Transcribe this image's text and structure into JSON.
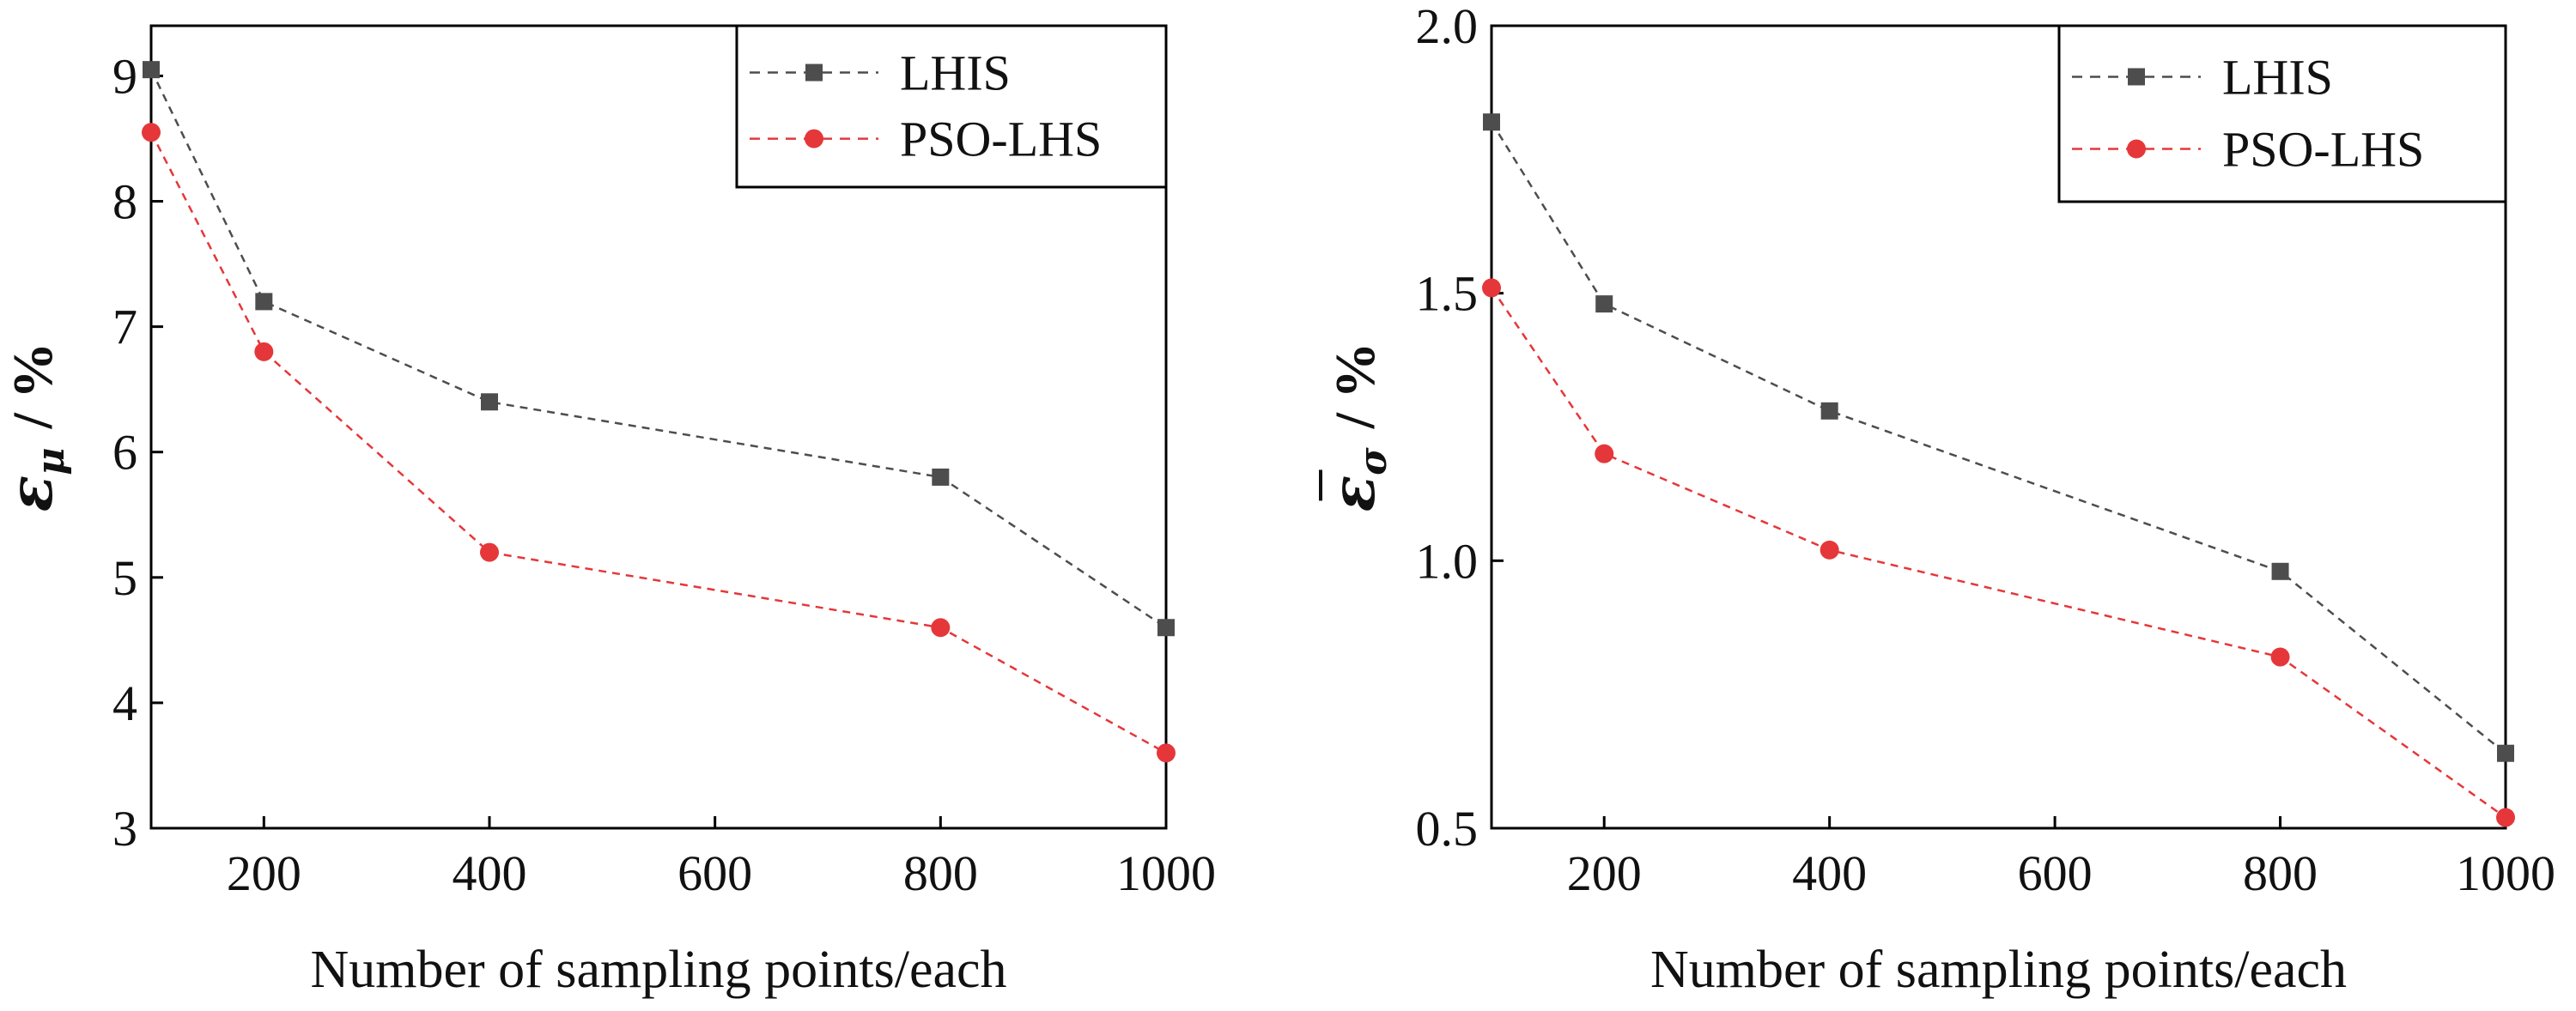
{
  "chart_data": [
    {
      "type": "line",
      "title": "",
      "xlabel": "Number of sampling points/each",
      "ylabel": {
        "symbol": "ε",
        "subscript": "μ",
        "unit": "/ %"
      },
      "x": [
        100,
        200,
        400,
        800,
        1000
      ],
      "xlim": [
        100,
        1000
      ],
      "ylim": [
        3,
        9.4
      ],
      "xticks": [
        200,
        400,
        600,
        800,
        1000
      ],
      "yticks": [
        3,
        4,
        5,
        6,
        7,
        8,
        9
      ],
      "grid": false,
      "legend_position": "top-right",
      "series": [
        {
          "name": "LHIS",
          "marker": "square",
          "color": "#4d4d4d",
          "values": [
            9.05,
            7.2,
            6.4,
            5.8,
            4.6
          ]
        },
        {
          "name": "PSO-LHS",
          "marker": "circle",
          "color": "#e5373a",
          "values": [
            8.55,
            6.8,
            5.2,
            4.6,
            3.6
          ]
        }
      ]
    },
    {
      "type": "line",
      "title": "",
      "xlabel": "Number of sampling points/each",
      "ylabel": {
        "symbol": "ε",
        "subscript": "σ",
        "unit": "/ %"
      },
      "x": [
        100,
        200,
        400,
        800,
        1000
      ],
      "xlim": [
        100,
        1000
      ],
      "ylim": [
        0.5,
        2.0
      ],
      "xticks": [
        200,
        400,
        600,
        800,
        1000
      ],
      "yticks": [
        0.5,
        1.0,
        1.5,
        2.0
      ],
      "grid": false,
      "legend_position": "top-right",
      "series": [
        {
          "name": "LHIS",
          "marker": "square",
          "color": "#4d4d4d",
          "values": [
            1.82,
            1.48,
            1.28,
            0.98,
            0.64
          ]
        },
        {
          "name": "PSO-LHS",
          "marker": "circle",
          "color": "#e5373a",
          "values": [
            1.51,
            1.2,
            1.02,
            0.82,
            0.52
          ]
        }
      ]
    }
  ]
}
